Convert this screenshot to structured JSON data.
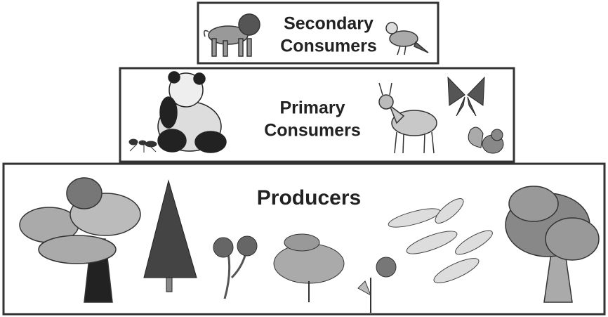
{
  "tiers": [
    {
      "lines": [
        "Secondary",
        "Consumers"
      ]
    },
    {
      "lines": [
        "Primary",
        "Consumers"
      ]
    },
    {
      "lines": [
        "Producers"
      ]
    }
  ]
}
